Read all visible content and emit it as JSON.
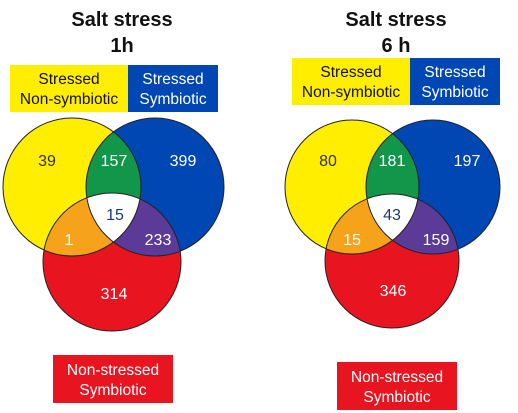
{
  "colors": {
    "yellow": "#ffee00",
    "blue": "#0047b3",
    "red": "#e8141f",
    "green": "#11964a",
    "orange": "#f7a21b",
    "purple": "#5b3b97",
    "white": "#ffffff"
  },
  "panels": [
    {
      "title_line1": "Salt stress",
      "title_line2": "1h",
      "legend_yellow_line1": "Stressed",
      "legend_yellow_line2": "Non-symbiotic",
      "legend_blue_line1": "Stressed",
      "legend_blue_line2": "Symbiotic",
      "legend_red_line1": "Non-stressed",
      "legend_red_line2": "Symbiotic",
      "counts": {
        "yellow_only": "39",
        "yellow_blue": "157",
        "blue_only": "399",
        "all_three": "15",
        "yellow_red": "1",
        "blue_red": "233",
        "red_only": "314"
      }
    },
    {
      "title_line1": "Salt stress",
      "title_line2": "6 h",
      "legend_yellow_line1": "Stressed",
      "legend_yellow_line2": "Non-symbiotic",
      "legend_blue_line1": "Stressed",
      "legend_blue_line2": "Symbiotic",
      "legend_red_line1": "Non-stressed",
      "legend_red_line2": "Symbiotic",
      "counts": {
        "yellow_only": "80",
        "yellow_blue": "181",
        "blue_only": "197",
        "all_three": "43",
        "yellow_red": "15",
        "blue_red": "159",
        "red_only": "346"
      }
    }
  ]
}
